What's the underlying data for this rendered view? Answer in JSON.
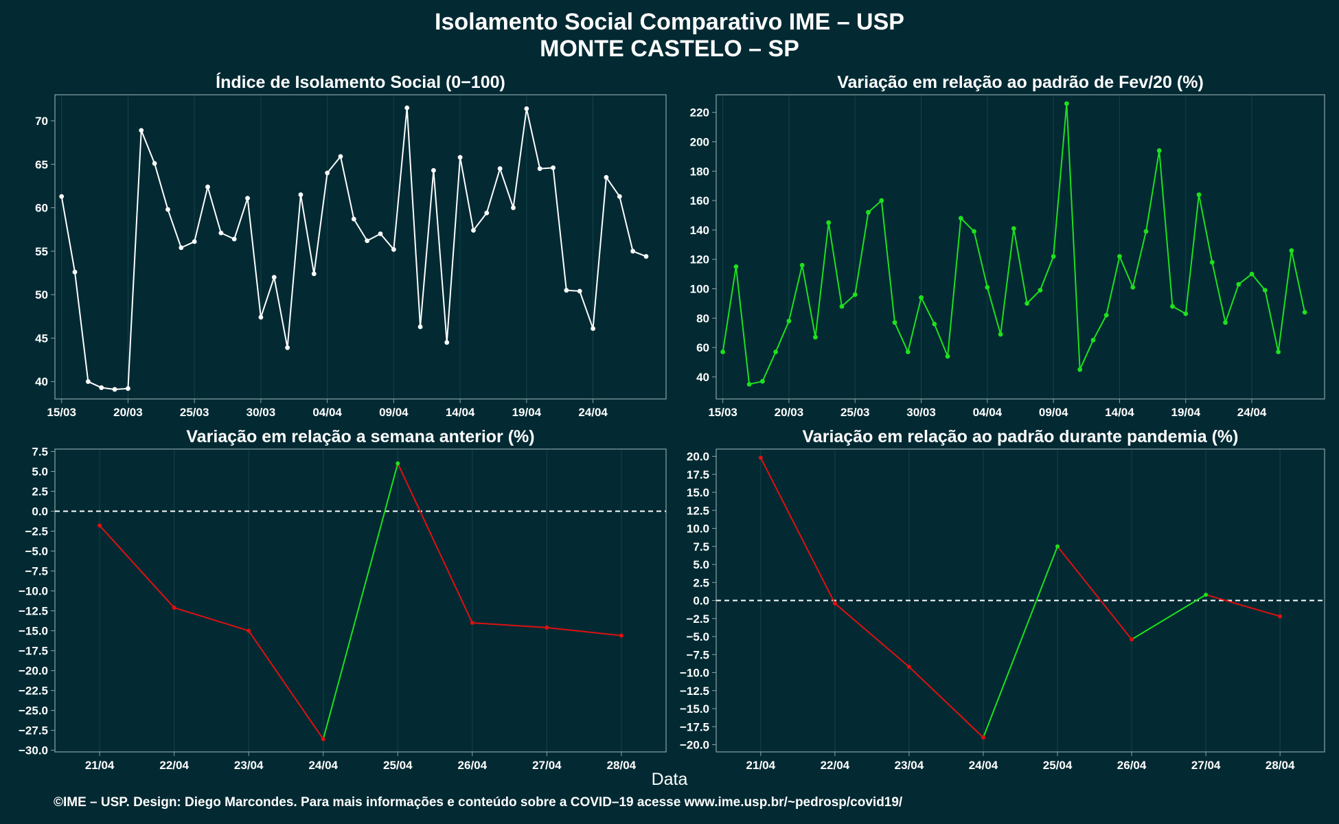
{
  "title": "Isolamento Social Comparativo IME – USP",
  "subtitle": "MONTE CASTELO – SP",
  "xlabel": "Data",
  "footer": "©IME – USP. Design: Diego Marcondes. Para mais informações e conteúdo sobre a COVID–19 acesse www.ime.usp.br/~pedrosp/covid19/",
  "colors": {
    "background": "#032a33",
    "white": "#ffffff",
    "green": "#1ee01e",
    "red": "#e01010",
    "grid": "#16424a",
    "axis": "#8aa4a8"
  },
  "chart_data": [
    {
      "id": "indice",
      "type": "line",
      "title": "Índice de Isolamento Social (0−100)",
      "color": "white",
      "ylim": [
        38,
        73
      ],
      "yticks": [
        40,
        45,
        50,
        55,
        60,
        65,
        70
      ],
      "xlim": [
        -0.5,
        45.5
      ],
      "xticks": [
        0,
        5,
        10,
        15,
        20,
        25,
        30,
        35,
        40
      ],
      "xticklabels": [
        "15/03",
        "20/03",
        "25/03",
        "30/03",
        "04/04",
        "09/04",
        "14/04",
        "19/04",
        "24/04"
      ],
      "values": [
        61.3,
        52.6,
        40.0,
        39.3,
        39.1,
        39.2,
        68.9,
        65.1,
        59.8,
        55.4,
        56.1,
        62.4,
        57.1,
        56.4,
        61.1,
        47.4,
        52.0,
        43.9,
        61.5,
        52.4,
        64.0,
        65.9,
        58.7,
        56.2,
        57.0,
        55.2,
        71.5,
        46.3,
        64.3,
        44.5,
        65.8,
        57.4,
        59.4,
        64.5,
        60.0,
        71.4,
        64.5,
        64.6,
        50.5,
        50.4,
        46.1,
        63.5,
        61.3,
        55.0,
        54.4
      ]
    },
    {
      "id": "fev",
      "type": "line",
      "title": "Variação em relação ao padrão de Fev/20 (%)",
      "color": "green",
      "ylim": [
        25,
        232
      ],
      "yticks": [
        40,
        60,
        80,
        100,
        120,
        140,
        160,
        180,
        200,
        220
      ],
      "xlim": [
        -0.5,
        45.5
      ],
      "xticks": [
        0,
        5,
        10,
        15,
        20,
        25,
        30,
        35,
        40
      ],
      "xticklabels": [
        "15/03",
        "20/03",
        "25/03",
        "30/03",
        "04/04",
        "09/04",
        "14/04",
        "19/04",
        "24/04"
      ],
      "values": [
        57,
        115,
        35,
        37,
        57,
        78,
        116,
        67,
        145,
        88,
        96,
        152,
        160,
        77,
        57,
        94,
        76,
        54,
        148,
        139,
        101,
        69,
        141,
        90,
        99,
        122,
        226,
        45,
        65,
        82,
        122,
        101,
        139,
        194,
        88,
        83,
        164,
        118,
        77,
        103,
        110,
        99,
        57,
        126,
        84
      ]
    },
    {
      "id": "semana",
      "type": "line",
      "title": "Variação em relação a semana anterior (%)",
      "color_rule": "segment green if increasing, red if decreasing",
      "ylim": [
        -30.2,
        7.8
      ],
      "yticks": [
        7.5,
        5.0,
        2.5,
        0.0,
        -2.5,
        -5.0,
        -7.5,
        -10.0,
        -12.5,
        -15.0,
        -17.5,
        -20.0,
        -22.5,
        -25.0,
        -27.5,
        -30.0
      ],
      "yticklabels": [
        "7.5",
        "5.0",
        "2.5",
        "0.0",
        "−2.5",
        "−5.0",
        "−7.5",
        "−10.0",
        "−12.5",
        "−15.0",
        "−17.5",
        "−20.0",
        "−22.5",
        "−25.0",
        "−27.5",
        "−30.0"
      ],
      "xlim": [
        -0.6,
        7.6
      ],
      "categories": [
        "21/04",
        "22/04",
        "23/04",
        "24/04",
        "25/04",
        "26/04",
        "27/04",
        "28/04"
      ],
      "values": [
        -1.8,
        -12.1,
        -15.0,
        -28.6,
        6.0,
        -14.0,
        -14.6,
        -15.6
      ],
      "reference_line": 0
    },
    {
      "id": "pandemia",
      "type": "line",
      "title": "Variação em relação ao padrão durante pandemia (%)",
      "color_rule": "segment green if increasing, red if decreasing",
      "ylim": [
        -21,
        21
      ],
      "yticks": [
        20.0,
        17.5,
        15.0,
        12.5,
        10.0,
        7.5,
        5.0,
        2.5,
        0.0,
        -2.5,
        -5.0,
        -7.5,
        -10.0,
        -12.5,
        -15.0,
        -17.5,
        -20.0
      ],
      "yticklabels": [
        "20.0",
        "17.5",
        "15.0",
        "12.5",
        "10.0",
        "7.5",
        "5.0",
        "2.5",
        "0.0",
        "−2.5",
        "−5.0",
        "−7.5",
        "−10.0",
        "−12.5",
        "−15.0",
        "−17.5",
        "−20.0"
      ],
      "xlim": [
        -0.6,
        7.6
      ],
      "categories": [
        "21/04",
        "22/04",
        "23/04",
        "24/04",
        "25/04",
        "26/04",
        "27/04",
        "28/04"
      ],
      "values": [
        19.8,
        -0.4,
        -9.2,
        -19.0,
        7.5,
        -5.4,
        0.8,
        -2.2
      ],
      "reference_line": 0
    }
  ]
}
